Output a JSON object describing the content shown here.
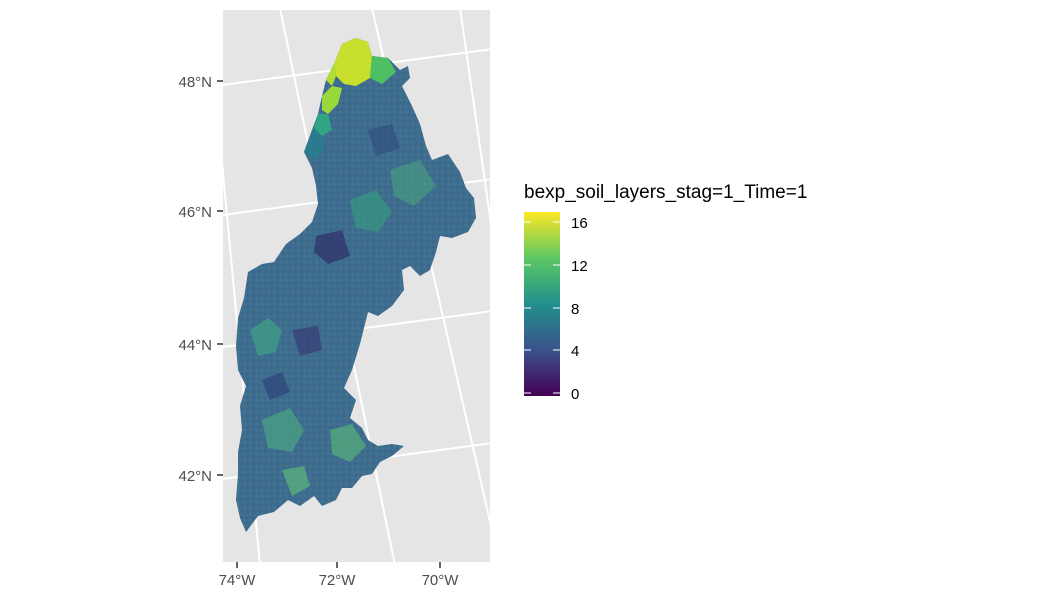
{
  "map": {
    "latitude_labels": [
      "48°N",
      "46°N",
      "44°N",
      "42°N"
    ],
    "longitude_labels": [
      "74°W",
      "72°W",
      "70°W"
    ],
    "panel_background": "#e5e5e5",
    "graticule_color": "#ffffff"
  },
  "legend": {
    "title": "bexp_soil_layers_stag=1_Time=1",
    "tick_labels": [
      "16",
      "12",
      "8",
      "4",
      "0"
    ],
    "ticks": [
      16,
      12,
      8,
      4,
      0
    ],
    "range": [
      0,
      16.5
    ],
    "colorscale": [
      "#440154",
      "#3b528b",
      "#21908c",
      "#5dc863",
      "#fde725"
    ]
  }
}
